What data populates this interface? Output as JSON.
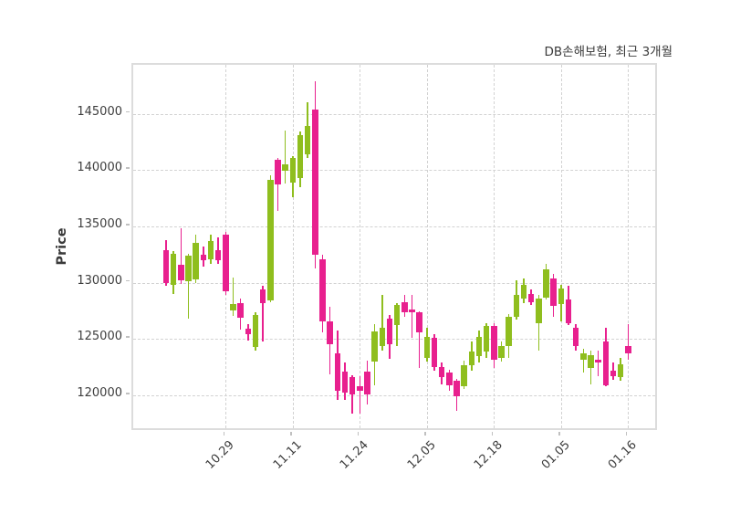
{
  "title": "DB손해보험, 최근 3개월",
  "chart_data": {
    "type": "candlestick",
    "title": "DB손해보험, 최근 3개월",
    "xlabel": "",
    "ylabel": "Price",
    "grid": "dashed, both axes",
    "legend_position": "none",
    "background": "#ffffff",
    "colors": {
      "up": "#8fbe1e",
      "down": "#e8208e",
      "grid": "#d2d2d2",
      "spine": "#dcdcdc",
      "tick_text": "#3d3d3d"
    },
    "y_ticks": [
      120000,
      125000,
      130000,
      135000,
      140000,
      145000
    ],
    "ylim": [
      116760,
      149340
    ],
    "x_tick_indices": [
      8,
      17,
      26,
      35,
      44,
      53,
      62
    ],
    "x_tick_labels": [
      "10.29",
      "11.11",
      "11.24",
      "12.05",
      "12.18",
      "01.05",
      "01.16"
    ],
    "series_note": "63 daily candles, values [open, high, low, close] in KRW",
    "candles": [
      [
        132900,
        133800,
        129700,
        130000
      ],
      [
        129800,
        132800,
        129000,
        132600
      ],
      [
        131600,
        134800,
        129900,
        130200
      ],
      [
        130100,
        132600,
        126800,
        132400
      ],
      [
        130300,
        134300,
        130000,
        133500
      ],
      [
        132500,
        133200,
        131400,
        132000
      ],
      [
        132100,
        134300,
        131700,
        133700
      ],
      [
        132900,
        134000,
        131700,
        132000
      ],
      [
        134300,
        134500,
        128900,
        129200
      ],
      [
        127500,
        130500,
        127100,
        128100
      ],
      [
        128200,
        128600,
        125800,
        126900
      ],
      [
        125900,
        126300,
        124900,
        125400
      ],
      [
        124300,
        127400,
        124000,
        127100
      ],
      [
        129400,
        129700,
        124800,
        128200
      ],
      [
        128400,
        139500,
        128300,
        139100
      ],
      [
        140900,
        141100,
        136400,
        138700
      ],
      [
        139900,
        143500,
        138800,
        140500
      ],
      [
        138900,
        141200,
        137600,
        141100
      ],
      [
        139300,
        143400,
        138500,
        143100
      ],
      [
        141400,
        146000,
        141100,
        143900
      ],
      [
        145400,
        147900,
        131300,
        132500
      ],
      [
        132100,
        132500,
        125600,
        126600
      ],
      [
        126600,
        127900,
        121900,
        124500
      ],
      [
        123700,
        125800,
        119600,
        120400
      ],
      [
        122100,
        122900,
        119600,
        120200
      ],
      [
        121600,
        121800,
        118400,
        120100
      ],
      [
        120800,
        121700,
        118400,
        120400
      ],
      [
        122100,
        123100,
        119200,
        120100
      ],
      [
        123000,
        126300,
        120900,
        125700
      ],
      [
        124400,
        128900,
        124000,
        126000
      ],
      [
        126800,
        127100,
        123200,
        124500
      ],
      [
        126200,
        128200,
        124400,
        128000
      ],
      [
        128300,
        128900,
        127000,
        127400
      ],
      [
        127600,
        128900,
        125100,
        127400
      ],
      [
        127400,
        127500,
        122400,
        125600
      ],
      [
        123300,
        126000,
        123000,
        125200
      ],
      [
        125100,
        125400,
        122200,
        122500
      ],
      [
        122500,
        122900,
        121000,
        121600
      ],
      [
        122000,
        122300,
        120400,
        120900
      ],
      [
        121300,
        121500,
        118600,
        119900
      ],
      [
        120800,
        123100,
        120600,
        122700
      ],
      [
        122700,
        124800,
        122200,
        123900
      ],
      [
        123500,
        125800,
        122900,
        125200
      ],
      [
        123900,
        126400,
        123300,
        126200
      ],
      [
        126200,
        126400,
        122400,
        123200
      ],
      [
        123300,
        124800,
        123000,
        124400
      ],
      [
        124400,
        127200,
        123300,
        127000
      ],
      [
        127000,
        130200,
        126700,
        128900
      ],
      [
        128600,
        130400,
        128200,
        129800
      ],
      [
        129000,
        129400,
        128000,
        128300
      ],
      [
        126400,
        128900,
        124000,
        128600
      ],
      [
        128700,
        131700,
        128500,
        131200
      ],
      [
        130400,
        130800,
        127000,
        127900
      ],
      [
        128100,
        129800,
        126600,
        129500
      ],
      [
        128500,
        129700,
        126200,
        126400
      ],
      [
        126000,
        126300,
        124000,
        124400
      ],
      [
        123200,
        124100,
        122000,
        123700
      ],
      [
        122400,
        124000,
        121000,
        123600
      ],
      [
        123200,
        124000,
        121700,
        122900
      ],
      [
        124800,
        126000,
        120800,
        120900
      ],
      [
        122200,
        122900,
        121400,
        121700
      ],
      [
        121600,
        123300,
        121300,
        122800
      ],
      [
        124400,
        126300,
        123200,
        123700
      ]
    ]
  }
}
